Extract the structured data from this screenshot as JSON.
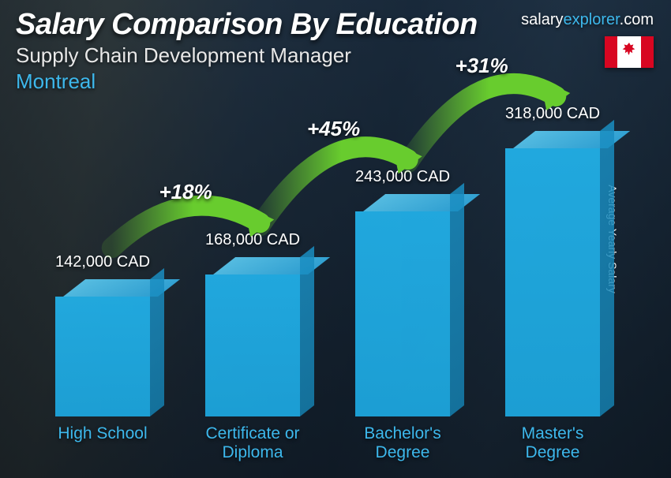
{
  "header": {
    "title": "Salary Comparison By Education",
    "subtitle": "Supply Chain Development Manager",
    "location": "Montreal"
  },
  "brand": {
    "part1": "salary",
    "part2": "explorer",
    "part3": ".com"
  },
  "flag": {
    "country": "Canada"
  },
  "yaxis_label": "Average Yearly Salary",
  "chart": {
    "type": "bar-3d",
    "currency": "CAD",
    "max_value": 318000,
    "bar_color": "#22b3ec",
    "bar_top_color": "#5bc9f0",
    "bar_side_color": "#1a8ec2",
    "label_color": "#3db8ec",
    "value_color": "#ffffff",
    "arc_color": "#68cc2e",
    "bars": [
      {
        "label": "High School",
        "value": 142000,
        "value_label": "142,000 CAD"
      },
      {
        "label": "Certificate or\nDiploma",
        "value": 168000,
        "value_label": "168,000 CAD"
      },
      {
        "label": "Bachelor's\nDegree",
        "value": 243000,
        "value_label": "243,000 CAD"
      },
      {
        "label": "Master's\nDegree",
        "value": 318000,
        "value_label": "318,000 CAD"
      }
    ],
    "deltas": [
      {
        "from": 0,
        "to": 1,
        "label": "+18%"
      },
      {
        "from": 1,
        "to": 2,
        "label": "+45%"
      },
      {
        "from": 2,
        "to": 3,
        "label": "+31%"
      }
    ]
  }
}
